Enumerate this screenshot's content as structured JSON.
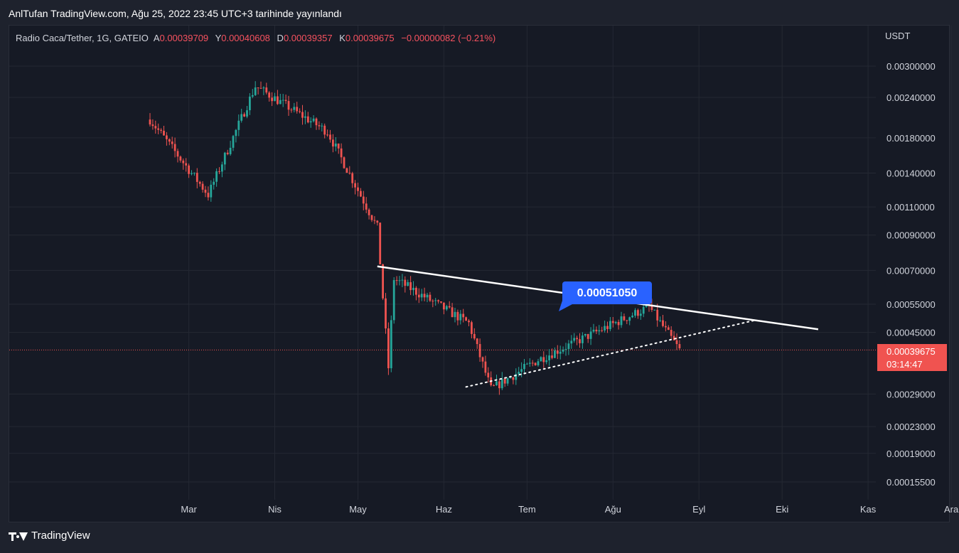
{
  "header": {
    "publisher_line": "AnlTufan TradingView.com, Ağu 25, 2022 23:45 UTC+3 tarihinde yayınlandı"
  },
  "legend": {
    "symbol": "Radio Caca/Tether, 1G, GATEIO",
    "open_key": "A",
    "open": "0.00039709",
    "high_key": "Y",
    "high": "0.00040608",
    "low_key": "D",
    "low": "0.00039357",
    "close_key": "K",
    "close": "0.00039675",
    "change": "−0.00000082 (−0.21%)"
  },
  "price_axis": {
    "currency": "USDT",
    "current_price": "0.00039675",
    "countdown": "03:14:47"
  },
  "annotation": {
    "label": "0.00051050"
  },
  "footer": {
    "brand": "TradingView"
  },
  "colors": {
    "up": "#26a69a",
    "down": "#ef5350",
    "current_price_badge": "#f05350",
    "annotation_badge": "#2962ff",
    "trendline": "#ffffff"
  },
  "chart_data": {
    "type": "candlestick",
    "scale": "log",
    "grid": true,
    "y_ticks": [
      "0.00300000",
      "0.00240000",
      "0.00180000",
      "0.00140000",
      "0.00110000",
      "0.00090000",
      "0.00070000",
      "0.00055000",
      "0.00045000",
      "0.00029000",
      "0.00023000",
      "0.00019000",
      "0.00015500"
    ],
    "x_ticks": [
      "Mar",
      "Nis",
      "May",
      "Haz",
      "Tem",
      "Ağu",
      "Eyl",
      "Eki",
      "Kas",
      "Ara"
    ],
    "key_points": [
      {
        "date": "2022-02-15",
        "price": 0.00205
      },
      {
        "date": "2022-03-08",
        "price": 0.0012
      },
      {
        "date": "2022-03-25",
        "price": 0.0026
      },
      {
        "date": "2022-04-20",
        "price": 0.00188
      },
      {
        "date": "2022-05-08",
        "price": 0.00095
      },
      {
        "date": "2022-05-12",
        "price": 0.00035
      },
      {
        "date": "2022-05-14",
        "price": 0.00066
      },
      {
        "date": "2022-06-10",
        "price": 0.00048
      },
      {
        "date": "2022-06-18",
        "price": 0.0003
      },
      {
        "date": "2022-07-05",
        "price": 0.00037
      },
      {
        "date": "2022-08-14",
        "price": 0.00054
      },
      {
        "date": "2022-08-25",
        "price": 0.00039675
      }
    ],
    "trendlines": [
      {
        "style": "solid",
        "from": {
          "date": "2022-05-08",
          "price": 0.00072
        },
        "to": {
          "date": "2022-10-14",
          "price": 0.00046
        }
      },
      {
        "style": "dotted",
        "from": {
          "date": "2022-06-09",
          "price": 0.000305
        },
        "to": {
          "date": "2022-09-21",
          "price": 0.00049
        }
      }
    ],
    "annotated_price": 0.0005105
  }
}
